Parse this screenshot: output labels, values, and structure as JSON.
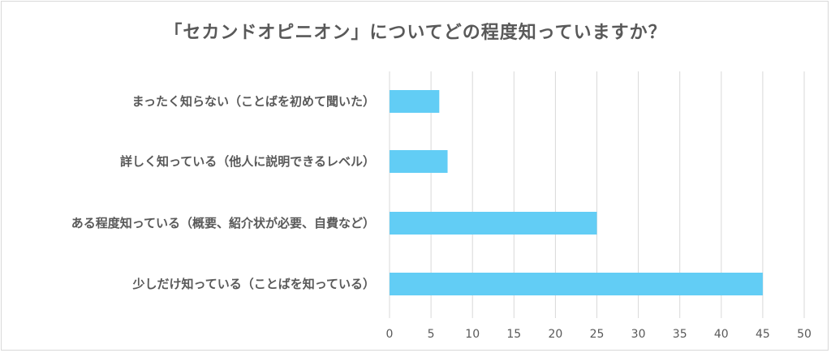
{
  "chart_data": {
    "type": "bar",
    "orientation": "horizontal",
    "title": "「セカンドオピニオン」についてどの程度知っていますか？",
    "categories": [
      "まったく知らない（ことばを初めて聞いた）",
      "詳しく知っている（他人に説明できるレベル）",
      "ある程度知っている（概要、紹介状が必要、自費など）",
      "少しだけ知っている（ことばを知っている）"
    ],
    "values": [
      6,
      7,
      25,
      45
    ],
    "xlim": [
      0,
      50
    ],
    "xticks": [
      "0",
      "5",
      "10",
      "15",
      "20",
      "25",
      "30",
      "35",
      "40",
      "45",
      "50"
    ],
    "grid": true,
    "legend": "none",
    "bar_color": "#62cdf5",
    "grid_color": "#d9d9d9",
    "text_color": "#595959"
  }
}
